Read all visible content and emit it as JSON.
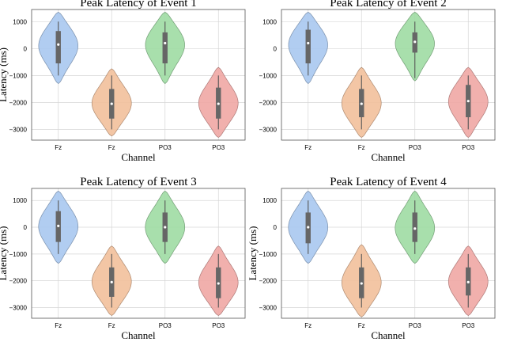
{
  "chart_data": [
    {
      "type": "violin",
      "title": "Peak Latency of Event 1",
      "xlabel": "Channel",
      "ylabel": "Latency (ms)",
      "categories": [
        "Fz",
        "Fz",
        "PO3",
        "PO3"
      ],
      "ylim": [
        -3400,
        1450
      ],
      "yticks": [
        1000,
        0,
        -1000,
        -2000,
        -3000
      ],
      "grid": true,
      "violins": [
        {
          "label": "Fz",
          "color": "#a9c8ef",
          "min": -1300,
          "max": 1350,
          "q1": -550,
          "median": 150,
          "q3": 650,
          "whisker_low": -1000,
          "whisker_high": 1000
        },
        {
          "label": "Fz",
          "color": "#f2c09b",
          "min": -3250,
          "max": -750,
          "q1": -2600,
          "median": -2050,
          "q3": -1500,
          "whisker_low": -3000,
          "whisker_high": -1000
        },
        {
          "label": "PO3",
          "color": "#9edba3",
          "min": -1300,
          "max": 1350,
          "q1": -550,
          "median": 200,
          "q3": 600,
          "whisker_low": -1000,
          "whisker_high": 1000
        },
        {
          "label": "PO3",
          "color": "#f0a7a4",
          "min": -3300,
          "max": -700,
          "q1": -2600,
          "median": -2050,
          "q3": -1450,
          "whisker_low": -3000,
          "whisker_high": -1000
        }
      ]
    },
    {
      "type": "violin",
      "title": "Peak Latency of Event 2",
      "xlabel": "Channel",
      "ylabel": "",
      "categories": [
        "Fz",
        "Fz",
        "PO3",
        "PO3"
      ],
      "ylim": [
        -3400,
        1450
      ],
      "yticks": [
        1000,
        0,
        -1000,
        -2000,
        -3000
      ],
      "grid": true,
      "violins": [
        {
          "label": "Fz",
          "color": "#a9c8ef",
          "min": -1300,
          "max": 1350,
          "q1": -550,
          "median": 200,
          "q3": 700,
          "whisker_low": -1000,
          "whisker_high": 1000
        },
        {
          "label": "Fz",
          "color": "#f2c09b",
          "min": -3300,
          "max": -700,
          "q1": -2550,
          "median": -2050,
          "q3": -1500,
          "whisker_low": -3000,
          "whisker_high": -1000
        },
        {
          "label": "PO3",
          "color": "#9edba3",
          "min": -1200,
          "max": 1350,
          "q1": -150,
          "median": 250,
          "q3": 600,
          "whisker_low": -1100,
          "whisker_high": 1000
        },
        {
          "label": "PO3",
          "color": "#f0a7a4",
          "min": -3300,
          "max": -700,
          "q1": -2550,
          "median": -1950,
          "q3": -1350,
          "whisker_low": -3000,
          "whisker_high": -1000
        }
      ]
    },
    {
      "type": "violin",
      "title": "Peak Latency of Event 3",
      "xlabel": "Channel",
      "ylabel": "Latency (ms)",
      "categories": [
        "Fz",
        "Fz",
        "PO3",
        "PO3"
      ],
      "ylim": [
        -3400,
        1450
      ],
      "yticks": [
        1000,
        0,
        -1000,
        -2000,
        -3000
      ],
      "grid": true,
      "violins": [
        {
          "label": "Fz",
          "color": "#a9c8ef",
          "min": -1350,
          "max": 1350,
          "q1": -550,
          "median": 50,
          "q3": 600,
          "whisker_low": -1000,
          "whisker_high": 1000
        },
        {
          "label": "Fz",
          "color": "#f2c09b",
          "min": -3300,
          "max": -700,
          "q1": -2600,
          "median": -2050,
          "q3": -1500,
          "whisker_low": -3000,
          "whisker_high": -1000
        },
        {
          "label": "PO3",
          "color": "#9edba3",
          "min": -1350,
          "max": 1350,
          "q1": -550,
          "median": 0,
          "q3": 550,
          "whisker_low": -1000,
          "whisker_high": 1000
        },
        {
          "label": "PO3",
          "color": "#f0a7a4",
          "min": -3300,
          "max": -700,
          "q1": -2650,
          "median": -2100,
          "q3": -1500,
          "whisker_low": -3000,
          "whisker_high": -1000
        }
      ]
    },
    {
      "type": "violin",
      "title": "Peak Latency of Event 4",
      "xlabel": "Channel",
      "ylabel": "Latency (ms)",
      "categories": [
        "Fz",
        "Fz",
        "PO3",
        "PO3"
      ],
      "ylim": [
        -3400,
        1450
      ],
      "yticks": [
        1000,
        0,
        -1000,
        -2000,
        -3000
      ],
      "grid": true,
      "violins": [
        {
          "label": "Fz",
          "color": "#a9c8ef",
          "min": -1350,
          "max": 1350,
          "q1": -600,
          "median": 0,
          "q3": 550,
          "whisker_low": -1000,
          "whisker_high": 1000
        },
        {
          "label": "Fz",
          "color": "#f2c09b",
          "min": -3350,
          "max": -650,
          "q1": -2650,
          "median": -2100,
          "q3": -1500,
          "whisker_low": -3000,
          "whisker_high": -1000
        },
        {
          "label": "PO3",
          "color": "#9edba3",
          "min": -1350,
          "max": 1350,
          "q1": -550,
          "median": -50,
          "q3": 550,
          "whisker_low": -1000,
          "whisker_high": 1000
        },
        {
          "label": "PO3",
          "color": "#f0a7a4",
          "min": -3300,
          "max": -700,
          "q1": -2550,
          "median": -2050,
          "q3": -1500,
          "whisker_low": -3000,
          "whisker_high": -1000
        }
      ]
    }
  ]
}
